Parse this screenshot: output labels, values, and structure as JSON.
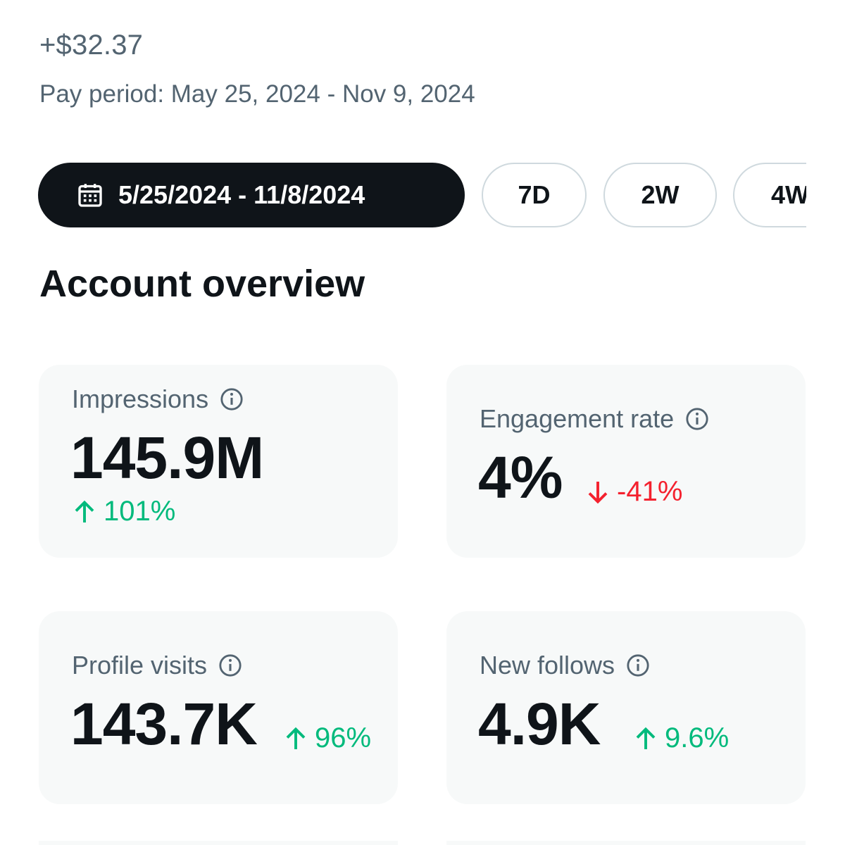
{
  "earnings": {
    "amount": "+$32.37",
    "pay_period": "Pay period: May 25, 2024 - Nov 9, 2024"
  },
  "filters": {
    "date_range": "5/25/2024 - 11/8/2024",
    "presets": [
      "7D",
      "2W",
      "4W"
    ]
  },
  "section_title": "Account overview",
  "metrics": [
    {
      "label": "Impressions",
      "value": "145.9M",
      "change": "101%",
      "direction": "up"
    },
    {
      "label": "Engagement rate",
      "value": "4%",
      "change": "-41%",
      "direction": "down"
    },
    {
      "label": "Profile visits",
      "value": "143.7K",
      "change": "96%",
      "direction": "up"
    },
    {
      "label": "New follows",
      "value": "4.9K",
      "change": "9.6%",
      "direction": "up"
    }
  ],
  "icons": {
    "calendar": "calendar-icon",
    "info": "info-icon",
    "arrow_up": "arrow-up-icon",
    "arrow_down": "arrow-down-icon"
  },
  "colors": {
    "positive": "#00ba7c",
    "negative": "#f4212e",
    "secondary_text": "#536471",
    "primary_text": "#0f1419",
    "card_bg": "#f7f9f9"
  }
}
